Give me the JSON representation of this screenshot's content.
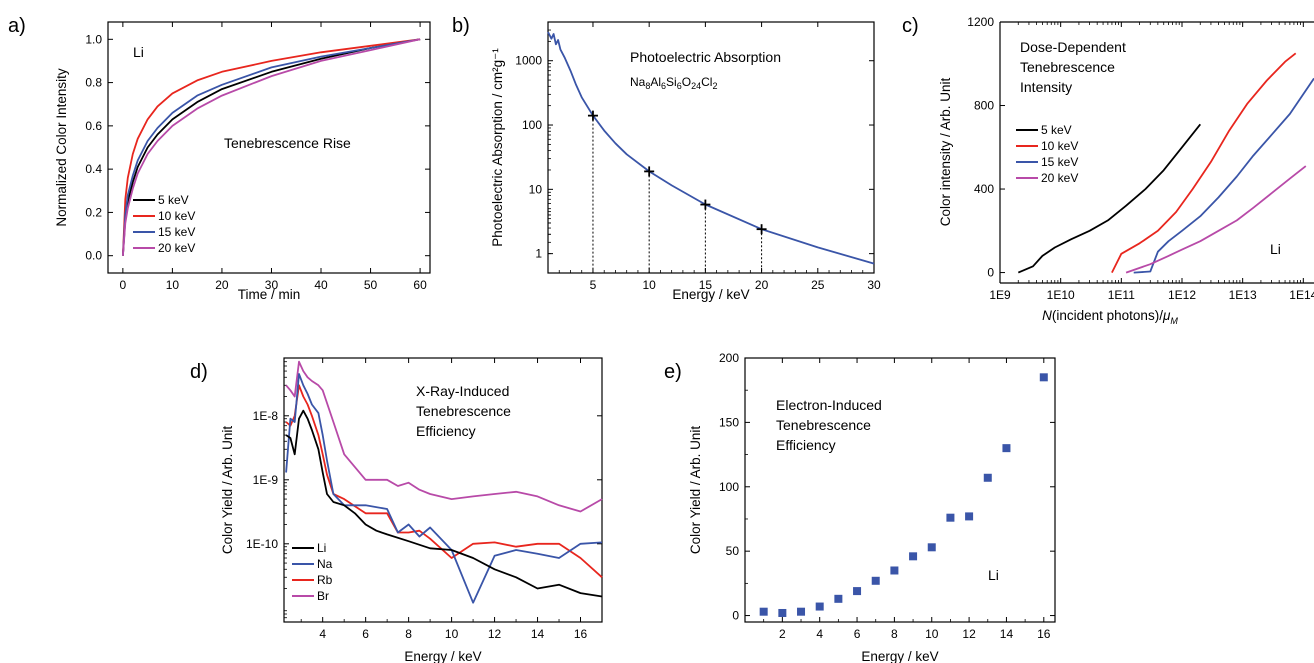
{
  "panels": [
    "a)",
    "b)",
    "c)",
    "d)",
    "e)"
  ],
  "colors": {
    "black": "#000000",
    "red": "#e8261e",
    "blue": "#3a55a8",
    "magenta": "#b84aa8"
  },
  "chart_data": [
    {
      "panel": "a)",
      "type": "line",
      "title": "Tenebrescence Rise",
      "annotation": "Li",
      "xlabel": "Time / min",
      "ylabel": "Normalized Color Intensity",
      "xlim": [
        -3,
        62
      ],
      "ylim": [
        -0.08,
        1.08
      ],
      "xticks": [
        0,
        10,
        20,
        30,
        40,
        50,
        60
      ],
      "yticks": [
        0.0,
        0.2,
        0.4,
        0.6,
        0.8,
        1.0
      ],
      "ytick_labels": [
        "0.0",
        "0.2",
        "0.4",
        "0.6",
        "0.8",
        "1.0"
      ],
      "legend_position": "bottom-left",
      "series": [
        {
          "name": "5 keV",
          "color": "#000000",
          "x": [
            0,
            0.5,
            1,
            2,
            3,
            5,
            7,
            10,
            15,
            20,
            30,
            40,
            50,
            60
          ],
          "y": [
            0,
            0.17,
            0.25,
            0.34,
            0.41,
            0.5,
            0.56,
            0.63,
            0.71,
            0.77,
            0.85,
            0.91,
            0.96,
            1.0
          ]
        },
        {
          "name": "10 keV",
          "color": "#e8261e",
          "x": [
            0,
            0.5,
            1,
            2,
            3,
            5,
            7,
            10,
            15,
            20,
            30,
            40,
            50,
            60
          ],
          "y": [
            0,
            0.26,
            0.36,
            0.47,
            0.54,
            0.63,
            0.69,
            0.75,
            0.81,
            0.85,
            0.9,
            0.94,
            0.97,
            1.0
          ]
        },
        {
          "name": "15 keV",
          "color": "#3a55a8",
          "x": [
            0,
            0.5,
            1,
            2,
            3,
            5,
            7,
            10,
            15,
            20,
            30,
            40,
            50,
            60
          ],
          "y": [
            0,
            0.19,
            0.28,
            0.37,
            0.44,
            0.53,
            0.59,
            0.66,
            0.74,
            0.79,
            0.87,
            0.92,
            0.96,
            1.0
          ]
        },
        {
          "name": "20 keV",
          "color": "#b84aa8",
          "x": [
            0,
            0.5,
            1,
            2,
            3,
            5,
            7,
            10,
            15,
            20,
            30,
            40,
            50,
            60
          ],
          "y": [
            0,
            0.15,
            0.22,
            0.31,
            0.38,
            0.47,
            0.53,
            0.6,
            0.68,
            0.74,
            0.83,
            0.9,
            0.95,
            1.0
          ]
        }
      ]
    },
    {
      "panel": "b)",
      "type": "line",
      "title": "Photoelectric Absorption",
      "formula": {
        "parts": [
          [
            "Na",
            ""
          ],
          [
            "8",
            "sub"
          ],
          [
            "Al",
            ""
          ],
          [
            "6",
            "sub"
          ],
          [
            "Si",
            ""
          ],
          [
            "6",
            "sub"
          ],
          [
            "O",
            ""
          ],
          [
            "24",
            "sub"
          ],
          [
            "Cl",
            ""
          ],
          [
            "2",
            "sub"
          ]
        ]
      },
      "xlabel": "Energy / keV",
      "ylabel": "Photoelectric Absorption / cm²g⁻¹",
      "xscale": "linear",
      "yscale": "log",
      "xlim": [
        1,
        30
      ],
      "ylim": [
        0.5,
        4000
      ],
      "xticks": [
        5,
        10,
        15,
        20,
        25,
        30
      ],
      "yticks": [
        1,
        10,
        100,
        1000
      ],
      "ytick_labels": [
        "1",
        "10",
        "100",
        "1000"
      ],
      "series": [
        {
          "name": "",
          "color": "#3a55a8",
          "x": [
            1.0,
            1.3,
            1.5,
            1.7,
            1.9,
            2.1,
            2.5,
            3,
            3.5,
            4,
            5,
            6,
            7,
            8,
            10,
            12,
            15,
            20,
            25,
            30
          ],
          "y": [
            2800,
            2200,
            2600,
            1800,
            2100,
            1500,
            1100,
            700,
            420,
            270,
            140,
            82,
            52,
            35,
            19,
            11.5,
            5.8,
            2.4,
            1.25,
            0.7
          ]
        }
      ],
      "markers": {
        "x": [
          5,
          10,
          15,
          20
        ],
        "y": [
          140,
          19,
          5.8,
          2.4
        ]
      }
    },
    {
      "panel": "c)",
      "type": "line",
      "title": "Dose-Dependent Tenebrescence Intensity",
      "title_lines": [
        "Dose-Dependent",
        "Tenebrescence",
        "Intensity"
      ],
      "annotation": "Li",
      "xlabel": "N(incident photons)/μM",
      "xlabel_parts": {
        "var": "N",
        "mid": "(incident photons)/",
        "mu": "μ",
        "sub": "M"
      },
      "ylabel": "Color intensity / Arb. Unit",
      "xscale": "log",
      "xlim": [
        1000000000.0,
        150000000000000.0
      ],
      "ylim": [
        -50,
        1200
      ],
      "xticks": [
        1000000000.0,
        10000000000.0,
        100000000000.0,
        1000000000000.0,
        10000000000000.0,
        100000000000000.0
      ],
      "xtick_labels": [
        "1E9",
        "1E10",
        "1E11",
        "1E12",
        "1E13",
        "1E14"
      ],
      "yticks": [
        0,
        400,
        800,
        1200
      ],
      "ytick_labels": [
        "0",
        "400",
        "800",
        "1200"
      ],
      "legend_position": "left",
      "series": [
        {
          "name": "5 keV",
          "color": "#000000",
          "x": [
            2000000000.0,
            3500000000.0,
            5000000000.0,
            8000000000.0,
            15000000000.0,
            30000000000.0,
            60000000000.0,
            120000000000.0,
            250000000000.0,
            500000000000.0,
            1000000000000.0,
            2000000000000.0
          ],
          "y": [
            0,
            30,
            80,
            120,
            160,
            200,
            250,
            320,
            400,
            490,
            600,
            710
          ]
        },
        {
          "name": "10 keV",
          "color": "#e8261e",
          "x": [
            70000000000.0,
            100000000000.0,
            200000000000.0,
            400000000000.0,
            800000000000.0,
            1500000000000.0,
            3000000000000.0,
            6000000000000.0,
            12000000000000.0,
            25000000000000.0,
            50000000000000.0,
            75000000000000.0
          ],
          "y": [
            0,
            90,
            140,
            200,
            290,
            400,
            530,
            680,
            810,
            920,
            1010,
            1050
          ]
        },
        {
          "name": "15 keV",
          "color": "#3a55a8",
          "x": [
            160000000000.0,
            300000000000.0,
            400000000000.0,
            600000000000.0,
            1000000000000.0,
            2000000000000.0,
            4000000000000.0,
            8000000000000.0,
            15000000000000.0,
            30000000000000.0,
            60000000000000.0,
            150000000000000.0
          ],
          "y": [
            0,
            5,
            100,
            150,
            200,
            270,
            360,
            460,
            560,
            660,
            760,
            930
          ]
        },
        {
          "name": "20 keV",
          "color": "#b84aa8",
          "x": [
            120000000000.0,
            300000000000.0,
            600000000000.0,
            1000000000000.0,
            2000000000000.0,
            4000000000000.0,
            8000000000000.0,
            15000000000000.0,
            30000000000000.0,
            60000000000000.0,
            110000000000000.0
          ],
          "y": [
            0,
            40,
            80,
            110,
            150,
            200,
            250,
            310,
            380,
            450,
            510
          ]
        }
      ]
    },
    {
      "panel": "d)",
      "type": "line",
      "title": "X-Ray-Induced Tenebrescence Efficiency",
      "title_lines": [
        "X-Ray-Induced",
        "Tenebrescence",
        "Efficiency"
      ],
      "xlabel": "Energy / keV",
      "ylabel": "Color Yield / Arb. Unit",
      "xscale": "linear",
      "yscale": "log",
      "xlim": [
        2.2,
        17
      ],
      "ylim": [
        6e-12,
        8e-08
      ],
      "xticks": [
        4,
        6,
        8,
        10,
        12,
        14,
        16
      ],
      "yticks": [
        1e-10,
        1e-09,
        1e-08
      ],
      "ytick_labels": [
        "1E-10",
        "1E-9",
        "1E-8"
      ],
      "legend_position": "bottom-left",
      "series": [
        {
          "name": "Li",
          "color": "#000000",
          "x": [
            2.3,
            2.5,
            2.7,
            2.9,
            3.1,
            3.3,
            3.5,
            3.8,
            4.0,
            4.2,
            4.5,
            5,
            5.5,
            6,
            6.5,
            7,
            8,
            9,
            10,
            11,
            12,
            13,
            14,
            15,
            16,
            17
          ],
          "y": [
            5e-09,
            4.5e-09,
            2.5e-09,
            9e-09,
            1.2e-08,
            9e-09,
            6e-09,
            3e-09,
            1.3e-09,
            6e-10,
            4.5e-10,
            4e-10,
            3e-10,
            2e-10,
            1.6e-10,
            1.4e-10,
            1.1e-10,
            8.5e-11,
            8e-11,
            6e-11,
            4e-11,
            3e-11,
            2e-11,
            2.3e-11,
            1.7e-11,
            1.5e-11
          ]
        },
        {
          "name": "Na",
          "color": "#3a55a8",
          "x": [
            2.3,
            2.5,
            2.7,
            2.9,
            3.1,
            3.3,
            3.5,
            3.8,
            4.0,
            4.2,
            4.5,
            5,
            6,
            7,
            7.5,
            8,
            8.5,
            9,
            10,
            11,
            12,
            13,
            14,
            15,
            16,
            17
          ],
          "y": [
            1.3e-09,
            9e-09,
            8e-09,
            4.5e-08,
            3e-08,
            2.2e-08,
            1.5e-08,
            1.1e-08,
            5e-09,
            2e-09,
            6e-10,
            4e-10,
            4e-10,
            3.5e-10,
            1.5e-10,
            2e-10,
            1.3e-10,
            1.8e-10,
            8e-11,
            1.2e-11,
            6.5e-11,
            8e-11,
            7e-11,
            6e-11,
            1e-10,
            1.05e-10
          ]
        },
        {
          "name": "Rb",
          "color": "#e8261e",
          "x": [
            2.3,
            2.5,
            2.7,
            2.9,
            3.1,
            3.3,
            3.5,
            3.8,
            4.0,
            4.2,
            4.5,
            5,
            6,
            7,
            7.5,
            8,
            8.5,
            9,
            10,
            11,
            12,
            13,
            14,
            15,
            16,
            17
          ],
          "y": [
            8e-09,
            7e-09,
            1e-08,
            3e-08,
            2e-08,
            1.5e-08,
            1e-08,
            5e-09,
            2.5e-09,
            1.2e-09,
            6e-10,
            5e-10,
            3e-10,
            3e-10,
            1.5e-10,
            1.5e-10,
            1.6e-10,
            1.2e-10,
            6e-11,
            1e-10,
            1.05e-10,
            9e-11,
            1e-10,
            1e-10,
            6e-11,
            3e-11
          ]
        },
        {
          "name": "Br",
          "color": "#b84aa8",
          "x": [
            2.3,
            2.5,
            2.7,
            2.9,
            3.1,
            3.3,
            3.5,
            3.8,
            4.0,
            4.5,
            5,
            6,
            7,
            7.5,
            8,
            8.5,
            9,
            10,
            11,
            12,
            13,
            14,
            15,
            16,
            17
          ],
          "y": [
            3e-08,
            2.5e-08,
            2e-08,
            7e-08,
            5e-08,
            4e-08,
            3.5e-08,
            3e-08,
            2.5e-08,
            8e-09,
            2.5e-09,
            1e-09,
            1e-09,
            8e-10,
            9e-10,
            7e-10,
            6e-10,
            5e-10,
            5.5e-10,
            6e-10,
            6.5e-10,
            5.5e-10,
            4e-10,
            3.2e-10,
            5e-10
          ]
        }
      ]
    },
    {
      "panel": "e)",
      "type": "scatter",
      "title": "Electron-Induced Tenebrescence Efficiency",
      "title_lines": [
        "Electron-Induced",
        "Tenebrescence",
        "Efficiency"
      ],
      "annotation": "Li",
      "xlabel": "Energy / keV",
      "ylabel": "Color Yield / Arb. Unit",
      "xlim": [
        0,
        16.6
      ],
      "ylim": [
        -5,
        200
      ],
      "xticks": [
        2,
        4,
        6,
        8,
        10,
        12,
        14,
        16
      ],
      "yticks": [
        0,
        50,
        100,
        150,
        200
      ],
      "ytick_labels": [
        "0",
        "50",
        "100",
        "150",
        "200"
      ],
      "series": [
        {
          "name": "",
          "color": "#3a55a8",
          "x": [
            1,
            2,
            3,
            4,
            5,
            6,
            7,
            8,
            9,
            10,
            11,
            12,
            13,
            14,
            16
          ],
          "y": [
            3,
            2,
            3,
            7,
            13,
            19,
            27,
            35,
            46,
            53,
            76,
            77,
            107,
            130,
            185
          ]
        }
      ]
    }
  ]
}
